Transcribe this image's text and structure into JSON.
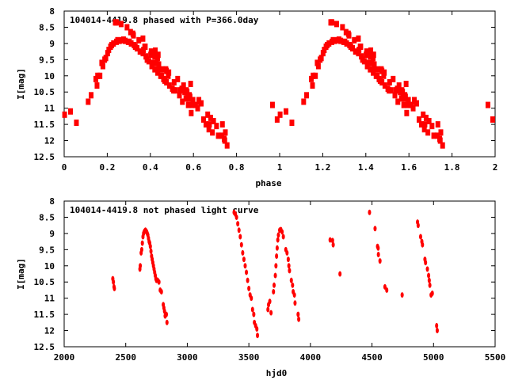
{
  "chart_data": [
    {
      "type": "scatter",
      "title": "104014-4419.8 phased with P=366.0day",
      "xlabel": "phase",
      "ylabel": "I[mag]",
      "xlim": [
        0,
        2
      ],
      "ylim": [
        12.5,
        8
      ],
      "xticks": [
        "0",
        "0.2",
        "0.4",
        "0.6",
        "0.8",
        "1",
        "1.2",
        "1.4",
        "1.6",
        "1.8",
        "2"
      ],
      "yticks": [
        "8",
        "8.5",
        "9",
        "9.5",
        "10",
        "10.5",
        "11",
        "11.5",
        "12",
        "12.5"
      ],
      "period": 366.0,
      "epoch": 2561.2,
      "color": "#ff0000",
      "note": "points are the light-curve points folded with period, each drawn at phase and phase+1"
    },
    {
      "type": "scatter",
      "title": "104014-4419.8 not phased light curve",
      "xlabel": "hjd0",
      "ylabel": "I[mag]",
      "xlim": [
        2000,
        5500
      ],
      "ylim": [
        12.5,
        8
      ],
      "xticks": [
        "2000",
        "2500",
        "3000",
        "3500",
        "4000",
        "4500",
        "5000",
        "5500"
      ],
      "yticks": [
        "8",
        "8.5",
        "9",
        "9.5",
        "10",
        "10.5",
        "11",
        "11.5",
        "12",
        "12.5"
      ],
      "color": "#ff0000",
      "points": [
        [
          2395,
          10.4
        ],
        [
          2400,
          10.5
        ],
        [
          2405,
          10.65
        ],
        [
          2408,
          10.7
        ],
        [
          2615,
          10.1
        ],
        [
          2618,
          10.0
        ],
        [
          2625,
          9.6
        ],
        [
          2630,
          9.5
        ],
        [
          2635,
          9.3
        ],
        [
          2640,
          9.1
        ],
        [
          2645,
          9.0
        ],
        [
          2650,
          8.95
        ],
        [
          2655,
          8.92
        ],
        [
          2660,
          8.9
        ],
        [
          2665,
          8.92
        ],
        [
          2670,
          8.95
        ],
        [
          2675,
          9.0
        ],
        [
          2680,
          9.05
        ],
        [
          2685,
          9.15
        ],
        [
          2690,
          9.25
        ],
        [
          2695,
          9.3
        ],
        [
          2700,
          9.4
        ],
        [
          2705,
          9.55
        ],
        [
          2710,
          9.7
        ],
        [
          2715,
          9.8
        ],
        [
          2720,
          9.9
        ],
        [
          2725,
          10.0
        ],
        [
          2730,
          10.1
        ],
        [
          2735,
          10.2
        ],
        [
          2740,
          10.3
        ],
        [
          2745,
          10.4
        ],
        [
          2750,
          10.45
        ],
        [
          2760,
          10.45
        ],
        [
          2770,
          10.5
        ],
        [
          2780,
          10.75
        ],
        [
          2790,
          10.8
        ],
        [
          2805,
          11.2
        ],
        [
          2810,
          11.3
        ],
        [
          2815,
          11.4
        ],
        [
          2820,
          11.55
        ],
        [
          2830,
          11.5
        ],
        [
          2835,
          11.75
        ],
        [
          3380,
          8.35
        ],
        [
          3390,
          8.4
        ],
        [
          3400,
          8.5
        ],
        [
          3410,
          8.7
        ],
        [
          3420,
          8.9
        ],
        [
          3430,
          9.1
        ],
        [
          3440,
          9.35
        ],
        [
          3450,
          9.6
        ],
        [
          3460,
          9.8
        ],
        [
          3470,
          10.0
        ],
        [
          3480,
          10.2
        ],
        [
          3490,
          10.45
        ],
        [
          3500,
          10.7
        ],
        [
          3510,
          10.9
        ],
        [
          3520,
          11.0
        ],
        [
          3530,
          11.35
        ],
        [
          3540,
          11.5
        ],
        [
          3545,
          11.75
        ],
        [
          3555,
          11.85
        ],
        [
          3565,
          11.95
        ],
        [
          3570,
          12.15
        ],
        [
          3655,
          11.35
        ],
        [
          3660,
          11.2
        ],
        [
          3670,
          11.1
        ],
        [
          3680,
          11.45
        ],
        [
          3700,
          10.8
        ],
        [
          3705,
          10.6
        ],
        [
          3715,
          10.3
        ],
        [
          3720,
          10.0
        ],
        [
          3725,
          9.7
        ],
        [
          3730,
          9.45
        ],
        [
          3735,
          9.2
        ],
        [
          3740,
          9.05
        ],
        [
          3750,
          8.9
        ],
        [
          3760,
          8.88
        ],
        [
          3770,
          8.95
        ],
        [
          3780,
          9.1
        ],
        [
          3800,
          9.5
        ],
        [
          3810,
          9.6
        ],
        [
          3820,
          9.8
        ],
        [
          3825,
          10.0
        ],
        [
          3830,
          10.15
        ],
        [
          3845,
          10.45
        ],
        [
          3855,
          10.6
        ],
        [
          3860,
          10.8
        ],
        [
          3870,
          10.9
        ],
        [
          3875,
          11.15
        ],
        [
          3900,
          11.5
        ],
        [
          3905,
          11.65
        ],
        [
          4160,
          9.2
        ],
        [
          4180,
          9.22
        ],
        [
          4185,
          9.35
        ],
        [
          4240,
          10.25
        ],
        [
          4480,
          8.35
        ],
        [
          4525,
          8.85
        ],
        [
          4545,
          9.4
        ],
        [
          4550,
          9.45
        ],
        [
          4552,
          9.65
        ],
        [
          4565,
          9.85
        ],
        [
          4605,
          10.65
        ],
        [
          4620,
          10.75
        ],
        [
          4745,
          10.9
        ],
        [
          4870,
          8.65
        ],
        [
          4875,
          8.75
        ],
        [
          4895,
          9.1
        ],
        [
          4905,
          9.25
        ],
        [
          4910,
          9.35
        ],
        [
          4930,
          9.8
        ],
        [
          4935,
          9.9
        ],
        [
          4950,
          10.1
        ],
        [
          4960,
          10.3
        ],
        [
          4965,
          10.45
        ],
        [
          4970,
          10.6
        ],
        [
          4980,
          10.9
        ],
        [
          4990,
          10.85
        ],
        [
          5025,
          11.85
        ],
        [
          5030,
          12.0
        ]
      ]
    }
  ]
}
